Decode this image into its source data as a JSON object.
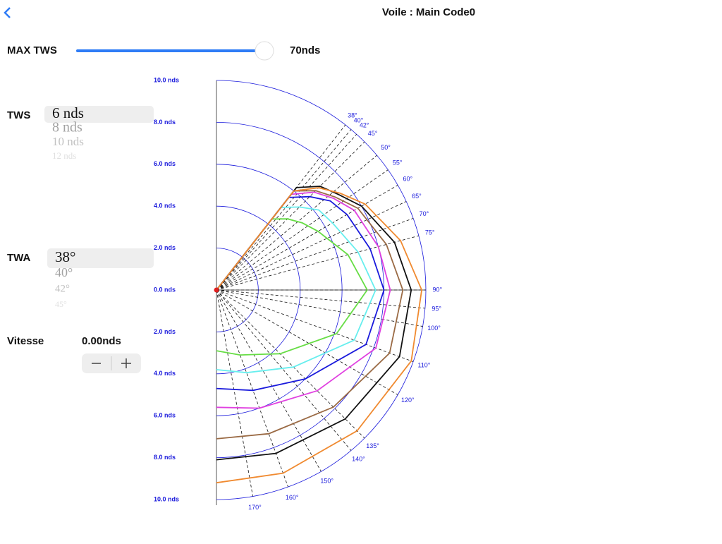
{
  "header": {
    "title": "Voile : Main Code0"
  },
  "slider": {
    "label": "MAX TWS",
    "value_text": "70nds"
  },
  "tws_picker": {
    "label": "TWS",
    "options": [
      "6 nds",
      "8 nds",
      "10 nds",
      "12 nds"
    ]
  },
  "twa_picker": {
    "label": "TWA",
    "options": [
      "38°",
      "40°",
      "42°",
      "45°"
    ]
  },
  "speed": {
    "label": "Vitesse",
    "value_text": "0.00nds"
  },
  "polar": {
    "type": "polar",
    "rlim": [
      0,
      10
    ],
    "rticks": [
      {
        "value": 10,
        "label": "10.0 nds"
      },
      {
        "value": 8,
        "label": "8.0 nds"
      },
      {
        "value": 6,
        "label": "6.0 nds"
      },
      {
        "value": 4,
        "label": "4.0 nds"
      },
      {
        "value": 2,
        "label": "2.0 nds"
      },
      {
        "value": 0,
        "label": "0.0 nds"
      }
    ],
    "angle_ticks": [
      {
        "value": 38,
        "label": "38°"
      },
      {
        "value": 40,
        "label": "40°"
      },
      {
        "value": 42,
        "label": "42°"
      },
      {
        "value": 45,
        "label": "45°"
      },
      {
        "value": 50,
        "label": "50°"
      },
      {
        "value": 55,
        "label": "55°"
      },
      {
        "value": 60,
        "label": "60°"
      },
      {
        "value": 65,
        "label": "65°"
      },
      {
        "value": 70,
        "label": "70°"
      },
      {
        "value": 75,
        "label": "75°"
      },
      {
        "value": 90,
        "label": "90°"
      },
      {
        "value": 95,
        "label": "95°"
      },
      {
        "value": 100,
        "label": "100°"
      },
      {
        "value": 110,
        "label": "110°"
      },
      {
        "value": 120,
        "label": "120°"
      },
      {
        "value": 135,
        "label": "135°"
      },
      {
        "value": 140,
        "label": "140°"
      },
      {
        "value": 150,
        "label": "150°"
      },
      {
        "value": 160,
        "label": "160°"
      },
      {
        "value": 170,
        "label": "170°"
      }
    ],
    "angles": [
      0,
      38,
      45,
      52,
      60,
      75,
      90,
      110,
      135,
      160,
      180
    ],
    "series": [
      {
        "color": "#66dd44",
        "values": [
          0,
          4.3,
          4.8,
          5.2,
          5.6,
          6.5,
          7.2,
          6.1,
          4.3,
          3.3,
          2.9
        ]
      },
      {
        "color": "#66eeee",
        "values": [
          0,
          5.0,
          5.6,
          6.2,
          6.4,
          7.0,
          7.6,
          7.0,
          5.2,
          4.2,
          3.8
        ]
      },
      {
        "color": "#1a1adc",
        "values": [
          0,
          5.6,
          6.3,
          6.9,
          7.2,
          7.6,
          8.0,
          7.6,
          6.0,
          5.1,
          4.7
        ]
      },
      {
        "color": "#e040e0",
        "values": [
          0,
          5.8,
          6.6,
          7.1,
          7.6,
          8.0,
          8.3,
          8.1,
          6.8,
          6.0,
          5.6
        ]
      },
      {
        "color": "#9a6a44",
        "values": [
          0,
          6.0,
          6.7,
          7.2,
          7.8,
          8.4,
          8.9,
          8.8,
          7.9,
          7.3,
          7.1
        ]
      },
      {
        "color": "#111111",
        "values": [
          0,
          6.2,
          7.0,
          7.4,
          8.0,
          8.8,
          9.3,
          9.3,
          8.7,
          8.3,
          8.1
        ]
      },
      {
        "color": "#f08a30",
        "values": [
          0,
          6.0,
          6.9,
          7.5,
          8.2,
          9.1,
          9.8,
          9.9,
          9.5,
          9.3,
          9.2
        ]
      }
    ]
  }
}
